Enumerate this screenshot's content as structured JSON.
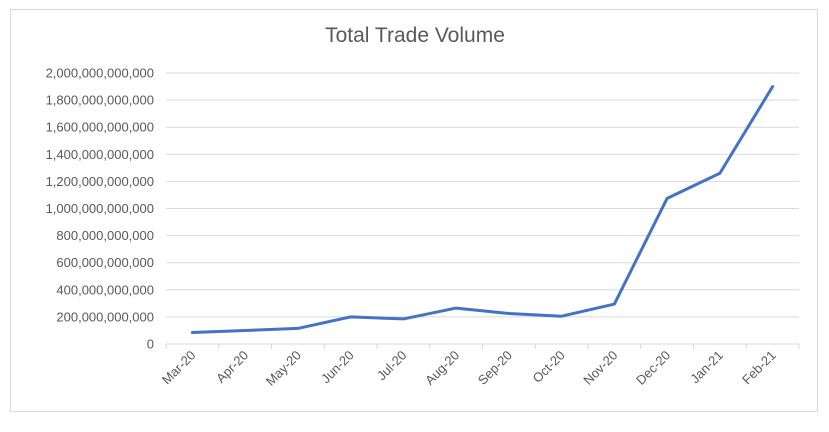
{
  "chart_data": {
    "type": "line",
    "title": "Total Trade Volume",
    "xlabel": "",
    "ylabel": "",
    "categories": [
      "Mar-20",
      "Apr-20",
      "May-20",
      "Jun-20",
      "Jul-20",
      "Aug-20",
      "Sep-20",
      "Oct-20",
      "Nov-20",
      "Dec-20",
      "Jan-21",
      "Feb-21"
    ],
    "series": [
      {
        "values": [
          85000000000,
          100000000000,
          115000000000,
          200000000000,
          185000000000,
          265000000000,
          225000000000,
          205000000000,
          295000000000,
          1075000000000,
          1260000000000,
          1900000000000
        ]
      }
    ],
    "ylim": [
      0,
      2000000000000
    ],
    "yticks": [
      0,
      200000000000,
      400000000000,
      600000000000,
      800000000000,
      1000000000000,
      1200000000000,
      1400000000000,
      1600000000000,
      1800000000000,
      2000000000000
    ],
    "ytick_labels": [
      "0",
      "200,000,000,000",
      "400,000,000,000",
      "600,000,000,000",
      "800,000,000,000",
      "1,000,000,000,000",
      "1,200,000,000,000",
      "1,400,000,000,000",
      "1,600,000,000,000",
      "1,800,000,000,000",
      "2,000,000,000,000"
    ],
    "grid": true,
    "legend": "none",
    "colors": {
      "series": "#4472c4",
      "grid": "#d9d9d9",
      "text": "#595959"
    }
  }
}
